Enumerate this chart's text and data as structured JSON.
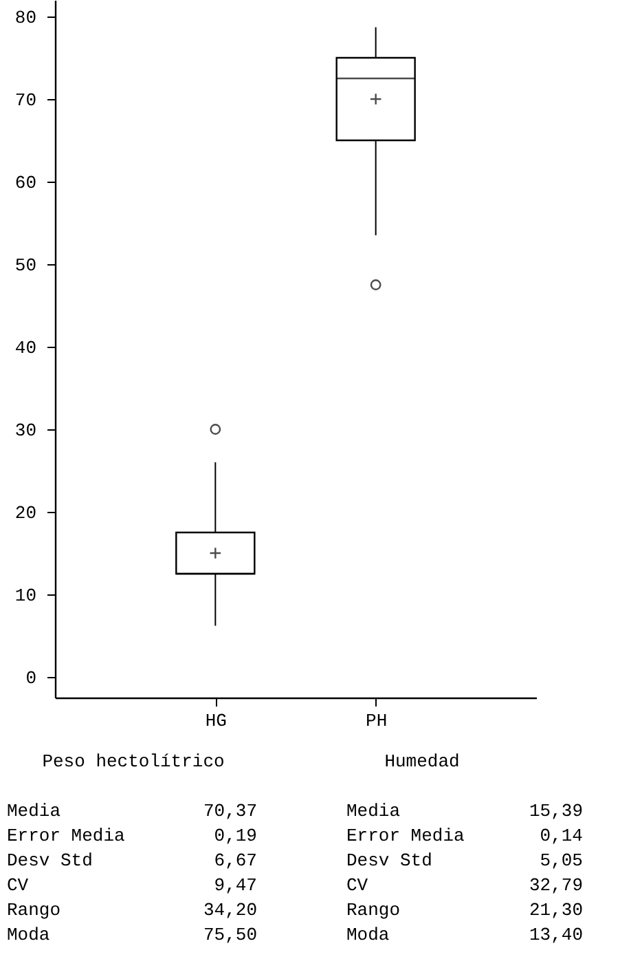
{
  "chart_data": {
    "type": "box",
    "categories": [
      "HG",
      "PH"
    ],
    "color": "#000000",
    "boxes": [
      {
        "low": 6.2,
        "q1": 12.5,
        "median": 12.5,
        "q3": 17.5,
        "high": 26,
        "mean": 15,
        "outliers": [
          30
        ]
      },
      {
        "low": 53.5,
        "q1": 65,
        "median": 72.5,
        "q3": 75,
        "high": 78.7,
        "mean": 70,
        "outliers": [
          47.5
        ]
      }
    ],
    "ylim": [
      -2.5,
      82
    ],
    "yticks": [
      0,
      10,
      20,
      30,
      40,
      50,
      60,
      70,
      80
    ],
    "grid": false,
    "annotations": [
      "Peso hectolítrico",
      "Humedad",
      "Media",
      "70,37",
      "Error Media",
      "0,19",
      "Desv Std",
      "6,67",
      "CV",
      "9,47",
      "Rango",
      "34,20",
      "Moda",
      "75,50",
      "Media",
      "15,39",
      "Error Media",
      "0,14",
      "Desv Std",
      "5,05",
      "CV",
      "32,79",
      "Rango",
      "21,30",
      "Moda",
      "13,40"
    ]
  }
}
